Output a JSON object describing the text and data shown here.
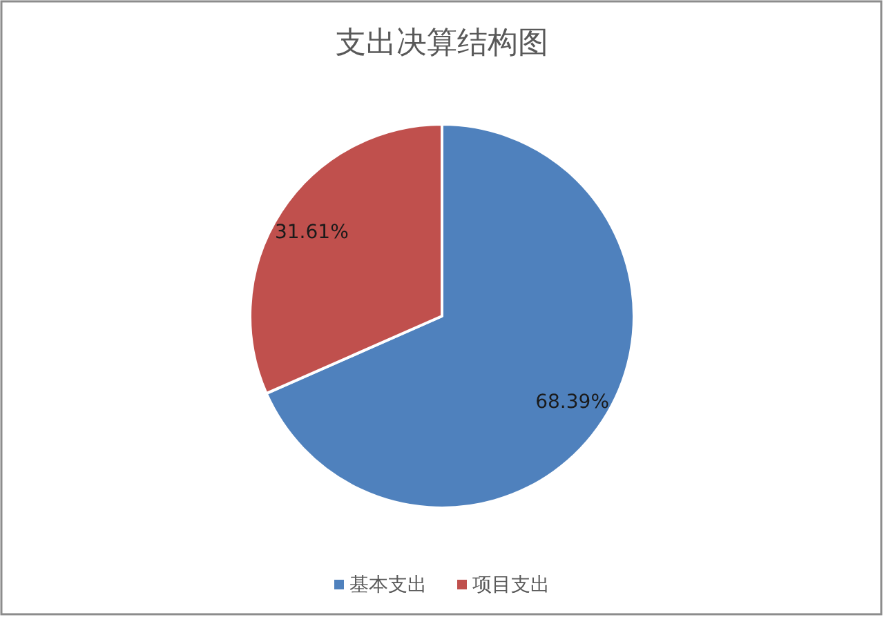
{
  "chart_data": {
    "type": "pie",
    "title": "支出决算结构图",
    "categories": [
      "基本支出",
      "项目支出"
    ],
    "values": [
      68.39,
      31.61
    ],
    "colors": [
      "#4f81bd",
      "#c0504d"
    ],
    "value_labels": [
      "68.39%",
      "31.61%"
    ],
    "legend": "bottom"
  }
}
